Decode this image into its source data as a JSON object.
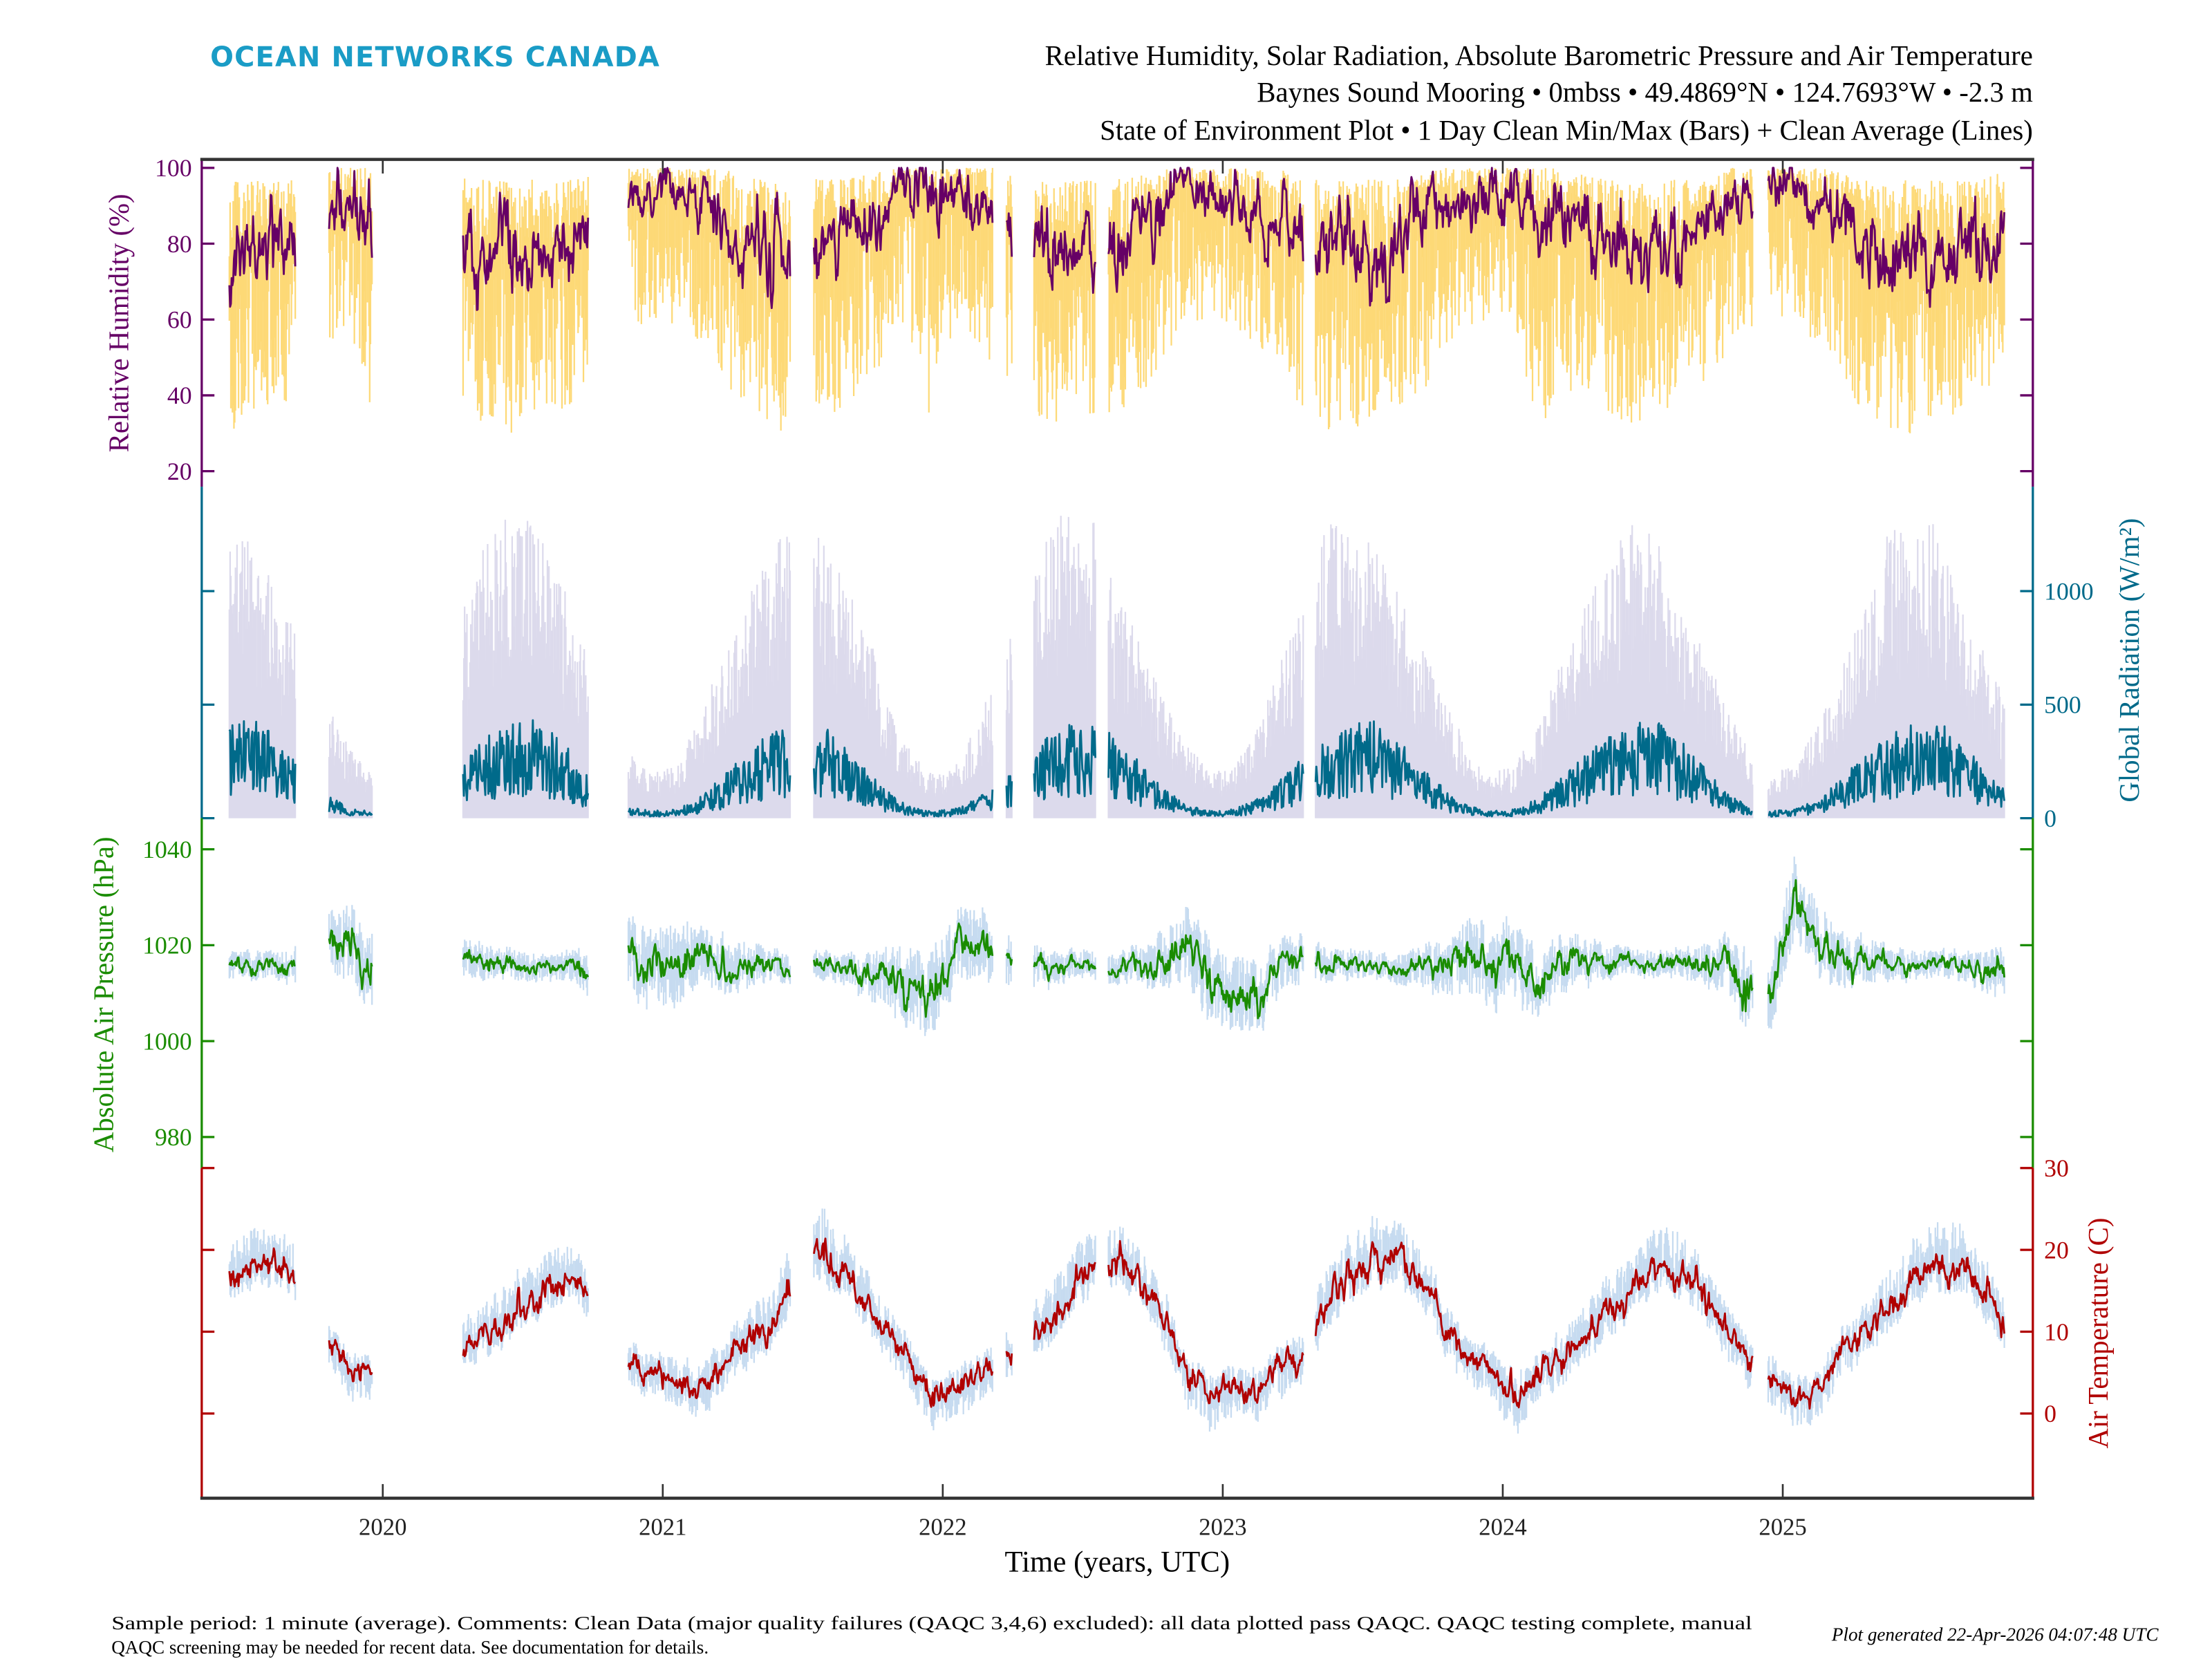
{
  "header": {
    "logo": "OCEAN NETWORKS CANADA",
    "title": "Relative Humidity, Solar Radiation, Absolute Barometric Pressure and Air Temperature",
    "subtitle": "Baynes Sound Mooring • 0mbss • 49.4869°N • 124.7693°W • -2.3 m",
    "subtitle2": "State of Environment Plot • 1 Day Clean Min/Max (Bars) + Clean Average (Lines)"
  },
  "footer": {
    "note_line1": "Sample period: 1 minute (average). Comments: Clean Data (major quality failures (QAQC 3,4,6) excluded): all data plotted pass QAQC. QAQC testing complete, manual",
    "note_line2": "QAQC screening may be needed for recent data. See documentation for details.",
    "generated": "Plot generated 22-Apr-2026 04:07:48 UTC"
  },
  "colors": {
    "logo": "#1a9cc6",
    "axis_frame": "#333333"
  },
  "chart_data": {
    "type": "line",
    "xlabel": "Time (years, UTC)",
    "xlim": [
      "2019-05-10",
      "2025-11-23"
    ],
    "xticks": [
      "2020",
      "2021",
      "2022",
      "2023",
      "2024",
      "2025"
    ],
    "grid": false,
    "legend": "none",
    "data_segments": [
      [
        "2019-06-15",
        "2019-09-09"
      ],
      [
        "2019-10-23",
        "2019-12-18"
      ],
      [
        "2020-04-15",
        "2020-09-26"
      ],
      [
        "2020-11-17",
        "2021-06-16"
      ],
      [
        "2021-07-17",
        "2022-03-07"
      ],
      [
        "2022-03-25",
        "2022-04-01"
      ],
      [
        "2022-04-30",
        "2022-07-19"
      ],
      [
        "2022-08-05",
        "2023-04-16"
      ],
      [
        "2023-05-02",
        "2024-11-23"
      ],
      [
        "2024-12-13",
        "2025-10-17"
      ]
    ],
    "months": [
      "2019-06",
      "2019-07",
      "2019-08",
      "2019-09",
      "2019-10",
      "2019-11",
      "2019-12",
      "2020-01",
      "2020-02",
      "2020-03",
      "2020-04",
      "2020-05",
      "2020-06",
      "2020-07",
      "2020-08",
      "2020-09",
      "2020-10",
      "2020-11",
      "2020-12",
      "2021-01",
      "2021-02",
      "2021-03",
      "2021-04",
      "2021-05",
      "2021-06",
      "2021-07",
      "2021-08",
      "2021-09",
      "2021-10",
      "2021-11",
      "2021-12",
      "2022-01",
      "2022-02",
      "2022-03",
      "2022-04",
      "2022-05",
      "2022-06",
      "2022-07",
      "2022-08",
      "2022-09",
      "2022-10",
      "2022-11",
      "2022-12",
      "2023-01",
      "2023-02",
      "2023-03",
      "2023-04",
      "2023-05",
      "2023-06",
      "2023-07",
      "2023-08",
      "2023-09",
      "2023-10",
      "2023-11",
      "2023-12",
      "2024-01",
      "2024-02",
      "2024-03",
      "2024-04",
      "2024-05",
      "2024-06",
      "2024-07",
      "2024-08",
      "2024-09",
      "2024-10",
      "2024-11",
      "2024-12",
      "2025-01",
      "2025-02",
      "2025-03",
      "2025-04",
      "2025-05",
      "2025-06",
      "2025-07",
      "2025-08",
      "2025-09",
      "2025-10"
    ],
    "series": [
      {
        "key": "rh",
        "ylabel": "Relative Humidity (%)",
        "axis_side": "left",
        "ylim": [
          16,
          102
        ],
        "yticks": [
          "20",
          "40",
          "60",
          "80",
          "100"
        ],
        "line_color": "#660066",
        "bar_color": "#fdd977",
        "monthly_mean": [
          75,
          80,
          82,
          85,
          90,
          92,
          88,
          92,
          90,
          86,
          80,
          78,
          76,
          76,
          78,
          84,
          88,
          92,
          93,
          93,
          90,
          88,
          80,
          78,
          78,
          76,
          80,
          84,
          90,
          93,
          92,
          92,
          90,
          86,
          82,
          82,
          80,
          78,
          80,
          84,
          88,
          92,
          92,
          92,
          90,
          86,
          82,
          78,
          78,
          78,
          80,
          84,
          88,
          90,
          92,
          93,
          90,
          86,
          80,
          78,
          76,
          78,
          80,
          84,
          88,
          92,
          94,
          95,
          92,
          86,
          80,
          78,
          76,
          76,
          78,
          80,
          85
        ],
        "monthly_min": [
          25,
          30,
          30,
          35,
          45,
          55,
          30,
          55,
          50,
          40,
          30,
          25,
          25,
          30,
          30,
          35,
          45,
          55,
          55,
          55,
          50,
          40,
          30,
          25,
          25,
          30,
          30,
          35,
          45,
          55,
          20,
          55,
          50,
          40,
          30,
          25,
          25,
          30,
          30,
          35,
          45,
          55,
          55,
          55,
          50,
          40,
          30,
          25,
          25,
          30,
          30,
          35,
          45,
          55,
          55,
          55,
          18,
          40,
          30,
          25,
          25,
          30,
          30,
          35,
          45,
          55,
          55,
          55,
          50,
          40,
          30,
          25,
          25,
          30,
          30,
          35,
          45
        ],
        "monthly_max": [
          97,
          97,
          97,
          98,
          100,
          100,
          100,
          100,
          100,
          100,
          98,
          97,
          97,
          97,
          97,
          98,
          100,
          100,
          100,
          100,
          100,
          100,
          98,
          97,
          97,
          97,
          97,
          98,
          100,
          100,
          100,
          100,
          100,
          100,
          98,
          97,
          97,
          97,
          97,
          98,
          100,
          100,
          100,
          100,
          100,
          100,
          98,
          97,
          97,
          97,
          97,
          98,
          100,
          100,
          100,
          100,
          100,
          100,
          98,
          97,
          97,
          97,
          97,
          98,
          100,
          100,
          100,
          100,
          100,
          100,
          98,
          97,
          97,
          97,
          97,
          98,
          100
        ]
      },
      {
        "key": "rad",
        "ylabel": "Global Radiation (W/m²)",
        "axis_side": "right",
        "ylim": [
          0,
          1460
        ],
        "yticks": [
          "0",
          "500",
          "1000"
        ],
        "line_color": "#006a8a",
        "bar_color": "#dcdaec",
        "monthly_mean": [
          260,
          275,
          225,
          150,
          70,
          30,
          18,
          25,
          55,
          110,
          175,
          230,
          260,
          275,
          225,
          150,
          80,
          35,
          20,
          25,
          55,
          110,
          175,
          230,
          260,
          275,
          225,
          150,
          80,
          35,
          20,
          25,
          55,
          110,
          175,
          230,
          260,
          275,
          225,
          150,
          80,
          35,
          20,
          25,
          55,
          110,
          175,
          230,
          260,
          275,
          225,
          150,
          80,
          35,
          20,
          25,
          55,
          110,
          175,
          230,
          260,
          275,
          225,
          150,
          80,
          35,
          20,
          25,
          55,
          110,
          175,
          230,
          260,
          275,
          225,
          150,
          80
        ],
        "monthly_min": [
          0,
          0,
          0,
          0,
          0,
          0,
          0,
          0,
          0,
          0,
          0,
          0,
          0,
          0,
          0,
          0,
          0,
          0,
          0,
          0,
          0,
          0,
          0,
          0,
          0,
          0,
          0,
          0,
          0,
          0,
          0,
          0,
          0,
          0,
          0,
          0,
          0,
          0,
          0,
          0,
          0,
          0,
          0,
          0,
          0,
          0,
          0,
          0,
          0,
          0,
          0,
          0,
          0,
          0,
          0,
          0,
          0,
          0,
          0,
          0,
          0,
          0,
          0,
          0,
          0,
          0,
          0,
          0,
          0,
          0,
          0,
          0,
          0,
          0,
          0,
          0,
          0
        ],
        "monthly_max": [
          1300,
          1200,
          1000,
          780,
          560,
          320,
          200,
          230,
          420,
          700,
          950,
          1250,
          1350,
          1300,
          1100,
          780,
          520,
          320,
          200,
          230,
          420,
          700,
          950,
          1150,
          1350,
          1300,
          1100,
          1000,
          520,
          320,
          200,
          230,
          420,
          700,
          1000,
          1350,
          1350,
          1300,
          1000,
          780,
          520,
          320,
          200,
          230,
          420,
          700,
          950,
          1350,
          1300,
          1200,
          1000,
          780,
          520,
          320,
          200,
          230,
          420,
          700,
          950,
          1150,
          1300,
          1300,
          1000,
          780,
          520,
          320,
          200,
          230,
          420,
          700,
          950,
          1250,
          1350,
          1300,
          1000,
          780,
          520
        ]
      },
      {
        "key": "pressure",
        "ylabel": "Absolute Air Pressure (hPa)",
        "axis_side": "left",
        "ylim": [
          973.5,
          1046.5
        ],
        "yticks": [
          "980",
          "1000",
          "1020",
          "1040"
        ],
        "line_color": "#1a8c00",
        "bar_color": "#c6dbf0",
        "monthly_mean": [
          1016,
          1016,
          1016,
          1016,
          1022,
          1020,
          1015,
          1018,
          1015,
          1016,
          1017,
          1016,
          1016,
          1015,
          1016,
          1015,
          1012,
          1018,
          1016,
          1015,
          1018,
          1016,
          1016,
          1016,
          1015,
          1016,
          1015,
          1014,
          1013,
          1012,
          1010,
          1018,
          1022,
          1016,
          1016,
          1015,
          1016,
          1016,
          1015,
          1016,
          1018,
          1020,
          1012,
          1010,
          1008,
          1016,
          1017,
          1016,
          1016,
          1016,
          1015,
          1016,
          1015,
          1018,
          1015,
          1016,
          1012,
          1016,
          1016,
          1017,
          1017,
          1016,
          1016,
          1016,
          1016,
          1012,
          1010,
          1030,
          1022,
          1016,
          1017,
          1016,
          1016,
          1016,
          1016,
          1015,
          1014
        ],
        "monthly_min": [
          1011,
          1011,
          1011,
          1009,
          1012,
          1007,
          1001,
          1004,
          1003,
          1006,
          1009,
          1010,
          1011,
          1010,
          1011,
          1008,
          1002,
          1005,
          1002,
          1001,
          1006,
          1006,
          1008,
          1010,
          1010,
          1011,
          1010,
          1007,
          1003,
          999,
          996,
          1004,
          1010,
          1006,
          1008,
          1009,
          1011,
          1011,
          1010,
          1009,
          1008,
          1007,
          998,
          996,
          996,
          1006,
          1009,
          1010,
          1011,
          1011,
          1010,
          1009,
          1005,
          1005,
          1001,
          1002,
          1000,
          1006,
          1008,
          1011,
          1012,
          1011,
          1011,
          1009,
          1006,
          999,
          996,
          1016,
          1010,
          1006,
          1009,
          1010,
          1011,
          1011,
          1011,
          1008,
          1004
        ],
        "monthly_max": [
          1021,
          1021,
          1021,
          1023,
          1032,
          1033,
          1029,
          1032,
          1027,
          1026,
          1025,
          1022,
          1021,
          1020,
          1021,
          1022,
          1022,
          1031,
          1030,
          1029,
          1030,
          1026,
          1024,
          1022,
          1020,
          1021,
          1020,
          1021,
          1023,
          1025,
          1024,
          1032,
          1034,
          1026,
          1024,
          1021,
          1021,
          1021,
          1020,
          1023,
          1028,
          1033,
          1026,
          1024,
          1020,
          1026,
          1025,
          1022,
          1021,
          1021,
          1020,
          1023,
          1025,
          1031,
          1029,
          1030,
          1024,
          1026,
          1024,
          1023,
          1022,
          1021,
          1021,
          1023,
          1026,
          1025,
          1024,
          1044,
          1034,
          1026,
          1025,
          1022,
          1021,
          1021,
          1021,
          1022,
          1024
        ]
      },
      {
        "key": "temperature",
        "ylabel": "Air Temperature (C)",
        "axis_side": "right",
        "ylim": [
          -10.3,
          30
        ],
        "yticks": [
          "0",
          "10",
          "20",
          "30"
        ],
        "line_color": "#b00000",
        "bar_color": "#c6dbf0",
        "monthly_mean": [
          17,
          18,
          18,
          17,
          9,
          6,
          5,
          5,
          5,
          6,
          8,
          10,
          12,
          14,
          16,
          16,
          11,
          6,
          5,
          5,
          3,
          6,
          8,
          11,
          15,
          20,
          18,
          15,
          10,
          7,
          2,
          3,
          5,
          6,
          8,
          11,
          15,
          18,
          19,
          16,
          12,
          4,
          2,
          4,
          3,
          5,
          7,
          14,
          17,
          19,
          19,
          16,
          11,
          7,
          6,
          2,
          5,
          7,
          10,
          12,
          15,
          18,
          18,
          15,
          11,
          7,
          5,
          2,
          3,
          7,
          10,
          13,
          16,
          18,
          18,
          16,
          11
        ],
        "monthly_min": [
          13,
          14,
          14,
          12,
          4,
          0,
          -1,
          0,
          0,
          1,
          3,
          5,
          8,
          10,
          12,
          11,
          6,
          1,
          0,
          -1,
          -3,
          0,
          3,
          6,
          10,
          14,
          13,
          10,
          5,
          1,
          -5,
          -3,
          -1,
          1,
          3,
          6,
          10,
          13,
          14,
          11,
          6,
          -2,
          -6,
          -2,
          -3,
          -1,
          2,
          8,
          12,
          14,
          14,
          11,
          5,
          1,
          0,
          -6,
          -1,
          1,
          5,
          7,
          10,
          13,
          13,
          10,
          5,
          1,
          -1,
          -4,
          -4,
          2,
          5,
          8,
          11,
          13,
          13,
          10,
          5
        ],
        "monthly_max": [
          24,
          26,
          25,
          23,
          13,
          9,
          8,
          9,
          9,
          11,
          14,
          17,
          20,
          22,
          24,
          22,
          16,
          10,
          9,
          9,
          8,
          11,
          14,
          18,
          23,
          30,
          26,
          22,
          15,
          11,
          6,
          7,
          9,
          11,
          14,
          18,
          23,
          26,
          27,
          23,
          17,
          8,
          6,
          8,
          7,
          10,
          13,
          22,
          25,
          27,
          26,
          23,
          16,
          11,
          10,
          6,
          9,
          12,
          16,
          19,
          23,
          26,
          26,
          22,
          16,
          11,
          9,
          6,
          7,
          12,
          16,
          20,
          24,
          27,
          27,
          22,
          16
        ]
      }
    ]
  }
}
